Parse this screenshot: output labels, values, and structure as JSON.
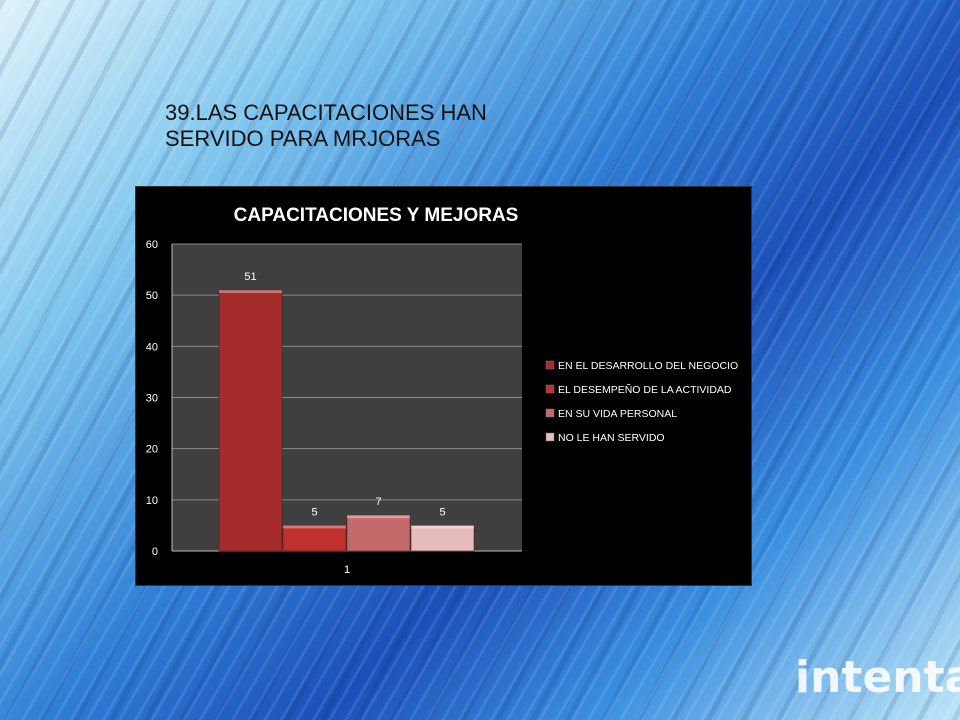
{
  "slide": {
    "title_lines": [
      "39.LAS CAPACITACIONES HAN",
      "SERVIDO PARA MRJORAS"
    ],
    "logo_text": "intenta"
  },
  "chart_data": {
    "type": "bar",
    "title": "CAPACITACIONES Y MEJORAS",
    "categories": [
      "1"
    ],
    "series": [
      {
        "name": "EN EL DESARROLLO DEL NEGOCIO",
        "values": [
          51
        ],
        "color": "#a52a2a"
      },
      {
        "name": "EL DESEMPEÑO DE LA ACTIVIDAD",
        "values": [
          5
        ],
        "color": "#c0302d"
      },
      {
        "name": "EN SU VIDA PERSONAL",
        "values": [
          7
        ],
        "color": "#c46a6a"
      },
      {
        "name": "NO LE HAN SERVIDO",
        "values": [
          5
        ],
        "color": "#e7bcbc"
      }
    ],
    "ylim": [
      0,
      60
    ],
    "yticks": [
      "0",
      "10",
      "20",
      "30",
      "40",
      "50",
      "60"
    ],
    "data_labels": [
      "51",
      "5",
      "7",
      "5"
    ],
    "grid": true,
    "legend_position": "right",
    "colors": {
      "background": "#000000",
      "plot_area": "#3f3f3f",
      "gridline": "#8a8a8a",
      "text": "#ffffff"
    }
  }
}
